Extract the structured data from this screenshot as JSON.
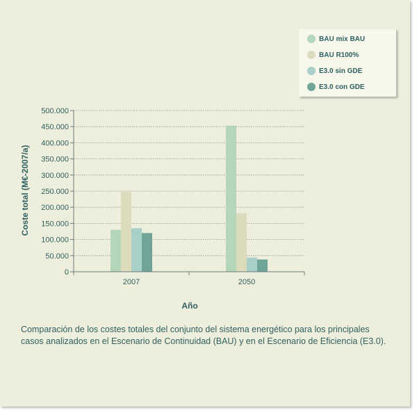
{
  "chart_data": {
    "type": "bar",
    "categories": [
      "2007",
      "2050"
    ],
    "series": [
      {
        "name": "BAU mix BAU",
        "color": "#b5d6b8",
        "values": [
          130000,
          453000
        ]
      },
      {
        "name": "BAU R100%",
        "color": "#dcdcbc",
        "values": [
          250000,
          182000
        ]
      },
      {
        "name": "E3.0 sin GDE",
        "color": "#a9d0c8",
        "values": [
          135000,
          44000
        ]
      },
      {
        "name": "E3.0 con GDE",
        "color": "#6fa597",
        "values": [
          120000,
          38000
        ]
      }
    ],
    "xlabel": "Año",
    "ylabel": "Coste total (M€-2007/a)",
    "ylim": [
      0,
      500000
    ],
    "yticks": [
      0,
      50000,
      100000,
      150000,
      200000,
      250000,
      300000,
      350000,
      400000,
      450000,
      500000
    ],
    "ytick_labels": [
      "0",
      "50.000",
      "100.000",
      "150.000",
      "200.000",
      "250.000",
      "300.000",
      "350.000",
      "400.000",
      "450.000",
      "500.000"
    ],
    "grid": true,
    "legend_position": "top-right"
  },
  "caption": "Comparación de los costes totales del conjunto del sistema energético para los principales casos analizados en el Escenario de Continuidad (BAU) y en el Escenario de Eficiencia (E3.0)."
}
